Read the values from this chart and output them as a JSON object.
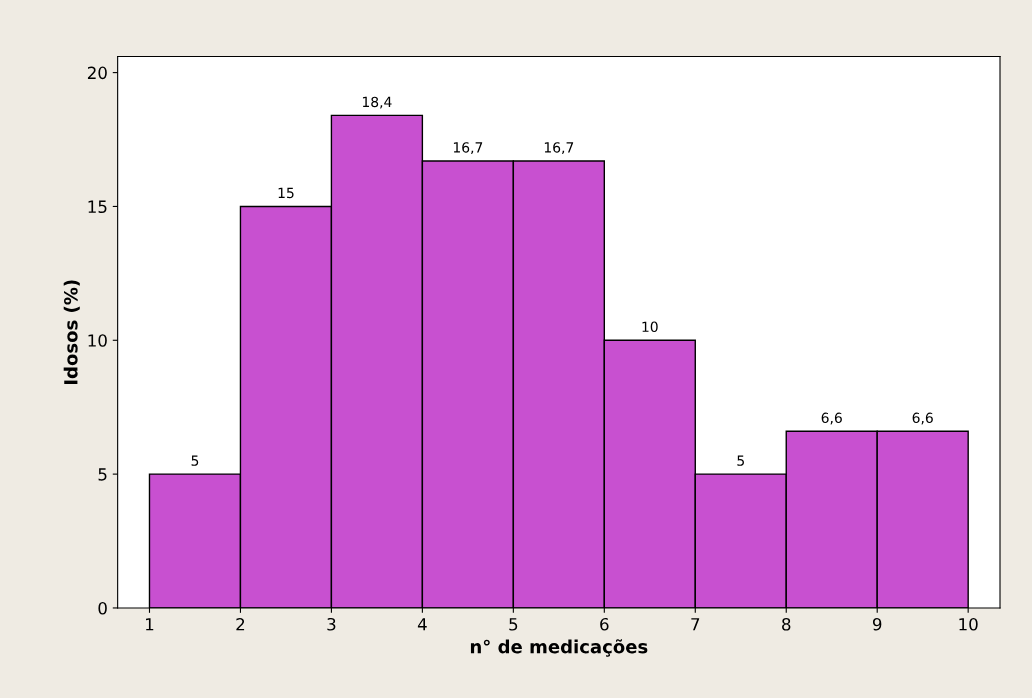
{
  "chart_data": {
    "type": "histogram",
    "xlabel": "n° de medicações",
    "ylabel": "Idosos (%)",
    "bins": [
      1,
      2,
      3,
      4,
      5,
      6,
      7,
      8,
      9,
      10
    ],
    "values": [
      5,
      15,
      18.4,
      16.7,
      16.7,
      10,
      5,
      6.6,
      6.6
    ],
    "value_labels": [
      "5",
      "15",
      "18,4",
      "16,7",
      "16,7",
      "10",
      "5",
      "6,6",
      "6,6"
    ],
    "color": "#c850d0",
    "xlim": [
      0.65,
      10.35
    ],
    "xticks": [
      1,
      2,
      3,
      4,
      5,
      6,
      7,
      8,
      9,
      10
    ],
    "ylim": [
      0,
      20.6
    ],
    "yticks": [
      0,
      5,
      10,
      15,
      20
    ],
    "grid": false
  }
}
